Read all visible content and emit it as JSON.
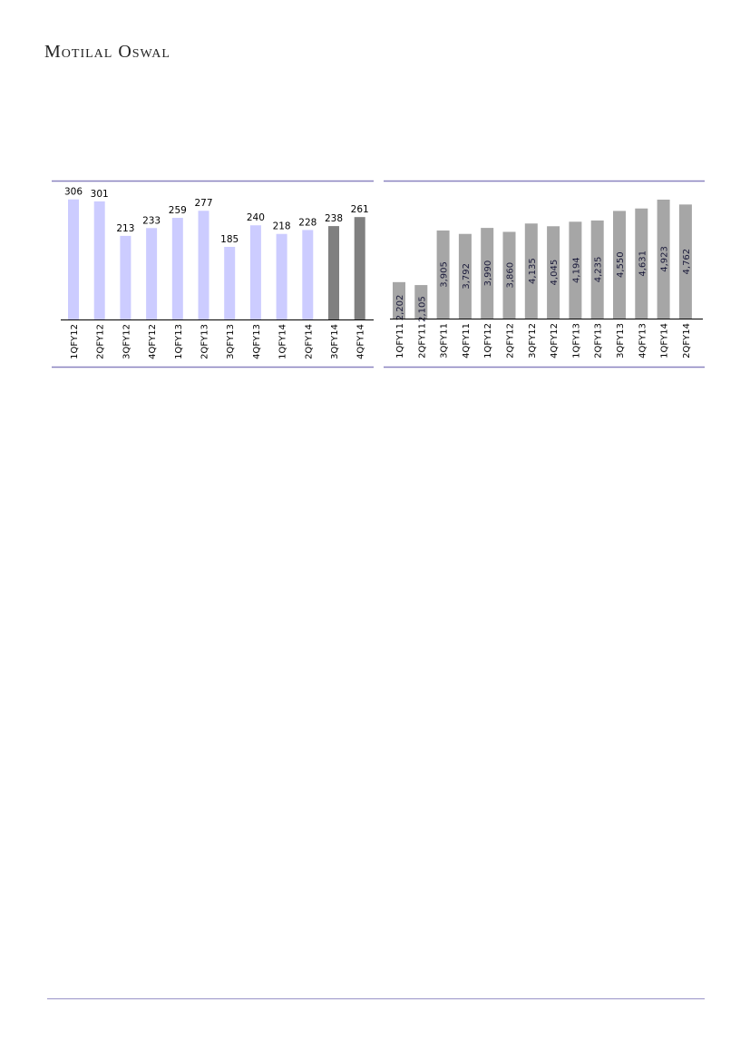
{
  "header": {
    "logo_text": "Motilal Oswal"
  },
  "chart_data": [
    {
      "type": "bar",
      "categories": [
        "1QFY12",
        "2QFY12",
        "3QFY12",
        "4QFY12",
        "1QFY13",
        "2QFY13",
        "3QFY13",
        "4QFY13",
        "1QFY14",
        "2QFY14",
        "3QFY14",
        "4QFY14"
      ],
      "values": [
        306,
        301,
        213,
        233,
        259,
        277,
        185,
        240,
        218,
        228,
        238,
        261
      ],
      "labels": [
        "306",
        "301",
        "213",
        "233",
        "259",
        "277",
        "185",
        "240",
        "218",
        "228",
        "238",
        "261"
      ],
      "colors": [
        "#ccccff",
        "#ccccff",
        "#ccccff",
        "#ccccff",
        "#ccccff",
        "#ccccff",
        "#ccccff",
        "#ccccff",
        "#ccccff",
        "#ccccff",
        "#808080",
        "#808080"
      ],
      "ylim": [
        0,
        340
      ],
      "grid": false,
      "label_position": "above"
    },
    {
      "type": "bar",
      "categories": [
        "1QFY11",
        "2QFY11",
        "3QFY11",
        "4QFY11",
        "1QFY12",
        "2QFY12",
        "3QFY12",
        "4QFY12",
        "1QFY13",
        "2QFY13",
        "3QFY13",
        "4QFY13",
        "1QFY14",
        "2QFY14"
      ],
      "values": [
        2202,
        2105,
        3905,
        3792,
        3990,
        3860,
        4135,
        4045,
        4194,
        4235,
        4550,
        4631,
        4923,
        4762
      ],
      "labels": [
        "2,202",
        "2,105",
        "3,905",
        "3,792",
        "3,990",
        "3,860",
        "4,135",
        "4,045",
        "4,194",
        "4,235",
        "4,550",
        "4,631",
        "4,923",
        "4,762"
      ],
      "colors": [
        "#a6a6a6"
      ],
      "ylim": [
        1000,
        5400
      ],
      "grid": false,
      "label_position": "inside-rotated"
    }
  ]
}
